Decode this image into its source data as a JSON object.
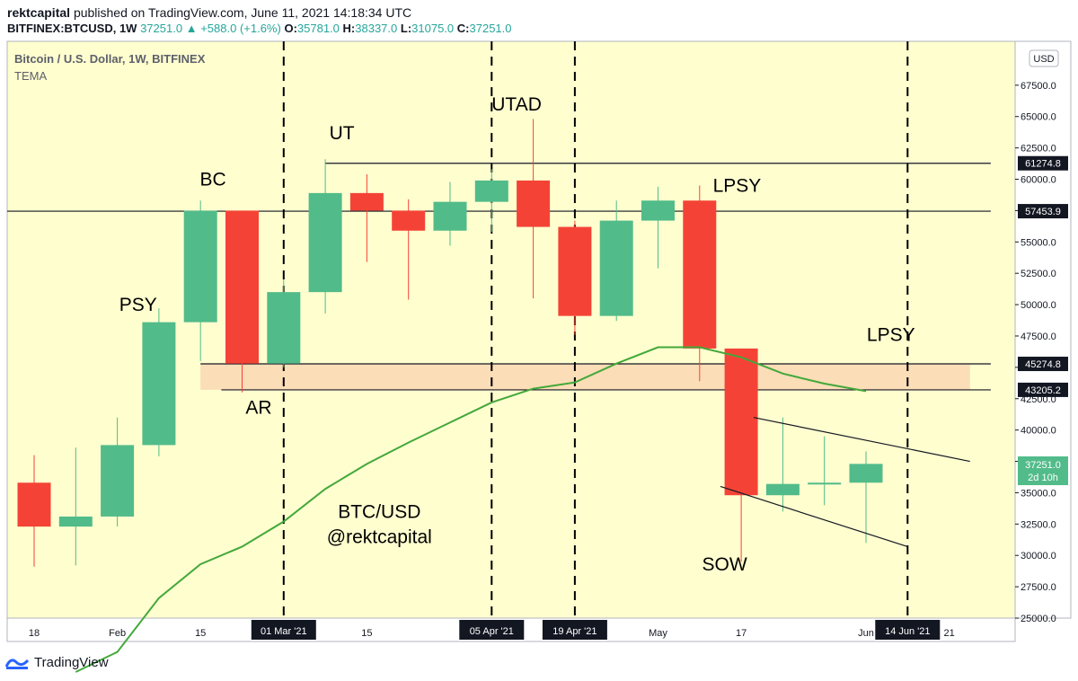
{
  "header": {
    "publisher": "rektcapital",
    "published_text": "published on TradingView.com, June 11, 2021 14:18:34 UTC",
    "symbol": "BITFINEX:BTCUSD, 1W",
    "last": "37251.0",
    "change": "+588.0 (+1.6%)",
    "o_label": "O:",
    "o": "35781.0",
    "h_label": "H:",
    "h": "38337.0",
    "l_label": "L:",
    "l": "31075.0",
    "c_label": "C:",
    "c": "37251.0"
  },
  "chart_title": "Bitcoin / U.S. Dollar, 1W, BITFINEX",
  "indicator": "TEMA",
  "currency": "USD",
  "footer": {
    "brand": "TradingView"
  },
  "colors": {
    "background": "#fffecf",
    "up": "#52bb8a",
    "down": "#f44336",
    "tema": "#43a83a",
    "zone": "#fbd9b4",
    "line": "#131722"
  },
  "chart_data": {
    "type": "candlestick",
    "title": "Bitcoin / U.S. Dollar, 1W, BITFINEX",
    "ylim": [
      25000,
      71000
    ],
    "y_ticks": [
      25000,
      27500,
      30000,
      32500,
      35000,
      37500,
      40000,
      42500,
      45000,
      47500,
      50000,
      52500,
      55000,
      57500,
      60000,
      62500,
      65000,
      67500
    ],
    "y_tick_labels": [
      "25000.0",
      "27500.0",
      "30000.0",
      "32500.0",
      "35000.0",
      "37500.0",
      "40000.0",
      "42500.0",
      "45000.0",
      "47500.0",
      "50000.0",
      "52500.0",
      "55000.0",
      "57500.0",
      "60000.0",
      "62500.0",
      "65000.0",
      "67500.0"
    ],
    "x_ticks": [
      {
        "label": "18",
        "at": 0
      },
      {
        "label": "Feb",
        "at": 2
      },
      {
        "label": "15",
        "at": 4
      },
      {
        "label": "15",
        "at": 8
      },
      {
        "label": "May",
        "at": 15
      },
      {
        "label": "17",
        "at": 17
      },
      {
        "label": "Jun",
        "at": 20
      },
      {
        "label": "21",
        "at": 22
      }
    ],
    "x_highlight_ticks": [
      {
        "label": "01 Mar '21",
        "at": 6
      },
      {
        "label": "05 Apr '21",
        "at": 11
      },
      {
        "label": "19 Apr '21",
        "at": 13
      },
      {
        "label": "14 Jun '21",
        "at": 21
      }
    ],
    "candles": [
      {
        "o": 35800,
        "h": 38000,
        "l": 29100,
        "c": 32300
      },
      {
        "o": 32300,
        "h": 38600,
        "l": 29200,
        "c": 33100
      },
      {
        "o": 33100,
        "h": 41000,
        "l": 32300,
        "c": 38800
      },
      {
        "o": 38800,
        "h": 49700,
        "l": 37900,
        "c": 48600
      },
      {
        "o": 48600,
        "h": 58300,
        "l": 45500,
        "c": 57500
      },
      {
        "o": 57500,
        "h": 57500,
        "l": 43000,
        "c": 45300
      },
      {
        "o": 45300,
        "h": 52000,
        "l": 45000,
        "c": 51000
      },
      {
        "o": 51000,
        "h": 61600,
        "l": 49300,
        "c": 58900
      },
      {
        "o": 58900,
        "h": 60400,
        "l": 53400,
        "c": 57500
      },
      {
        "o": 57500,
        "h": 58400,
        "l": 50400,
        "c": 55900
      },
      {
        "o": 55900,
        "h": 59800,
        "l": 54700,
        "c": 58200
      },
      {
        "o": 58200,
        "h": 60800,
        "l": 55800,
        "c": 59900
      },
      {
        "o": 59900,
        "h": 64800,
        "l": 50500,
        "c": 56200
      },
      {
        "o": 56200,
        "h": 56700,
        "l": 47600,
        "c": 49100
      },
      {
        "o": 49100,
        "h": 58300,
        "l": 48700,
        "c": 56700
      },
      {
        "o": 56700,
        "h": 59400,
        "l": 52900,
        "c": 58300
      },
      {
        "o": 58300,
        "h": 59500,
        "l": 43900,
        "c": 46500
      },
      {
        "o": 46500,
        "h": 46500,
        "l": 29500,
        "c": 34800
      },
      {
        "o": 34800,
        "h": 41000,
        "l": 33500,
        "c": 35700
      },
      {
        "o": 35700,
        "h": 39500,
        "l": 34000,
        "c": 35800
      },
      {
        "o": 35800,
        "h": 38300,
        "l": 31000,
        "c": 37300
      }
    ],
    "tema": [
      {
        "at": 1,
        "v": 20700
      },
      {
        "at": 2,
        "v": 22300
      },
      {
        "at": 3,
        "v": 26600
      },
      {
        "at": 4,
        "v": 29300
      },
      {
        "at": 5,
        "v": 30700
      },
      {
        "at": 6,
        "v": 32700
      },
      {
        "at": 7,
        "v": 35300
      },
      {
        "at": 8,
        "v": 37300
      },
      {
        "at": 9,
        "v": 39000
      },
      {
        "at": 10,
        "v": 40600
      },
      {
        "at": 11,
        "v": 42200
      },
      {
        "at": 12,
        "v": 43300
      },
      {
        "at": 13,
        "v": 43800
      },
      {
        "at": 14,
        "v": 45300
      },
      {
        "at": 15,
        "v": 46600
      },
      {
        "at": 16,
        "v": 46600
      },
      {
        "at": 17,
        "v": 45800
      },
      {
        "at": 18,
        "v": 44500
      },
      {
        "at": 19,
        "v": 43700
      },
      {
        "at": 20,
        "v": 43100
      }
    ],
    "horizontal_levels": [
      {
        "value": 61274.8,
        "label": "61274.8",
        "from": 7,
        "to": 23
      },
      {
        "value": 57453.9,
        "label": "57453.9",
        "from": -1,
        "to": 23
      },
      {
        "value": 45274.8,
        "label": "45274.8",
        "from": 4,
        "to": 23
      },
      {
        "value": 43205.2,
        "label": "43205.2",
        "from": 4.5,
        "to": 23
      }
    ],
    "zone": {
      "from": 4,
      "to": 22.5,
      "low": 43205.2,
      "high": 45274.8
    },
    "vertical_lines_at": [
      6,
      11,
      13,
      21
    ],
    "trendlines": [
      {
        "x1": 17.3,
        "y1": 41000,
        "x2": 22.5,
        "y2": 37500
      },
      {
        "x1": 16.5,
        "y1": 35500,
        "x2": 21,
        "y2": 30700
      }
    ],
    "last_price": {
      "value": 37251.0,
      "label": "37251.0",
      "sub": "2d 10h"
    },
    "annotations": [
      {
        "text": "BC",
        "at": 4.3,
        "v": 59500
      },
      {
        "text": "PSY",
        "at": 2.5,
        "v": 49500
      },
      {
        "text": "UT",
        "at": 7.4,
        "v": 63200
      },
      {
        "text": "UTAD",
        "at": 11.6,
        "v": 65500
      },
      {
        "text": "LPSY",
        "at": 16.9,
        "v": 59000
      },
      {
        "text": "LPSY",
        "at": 20.6,
        "v": 47100
      },
      {
        "text": "AR",
        "at": 5.4,
        "v": 41300
      },
      {
        "text": "SOW",
        "at": 16.6,
        "v": 28800
      },
      {
        "text": "BTC/USD",
        "at": 8.3,
        "v": 33000
      },
      {
        "text": "@rektcapital",
        "at": 8.3,
        "v": 31000
      }
    ]
  }
}
